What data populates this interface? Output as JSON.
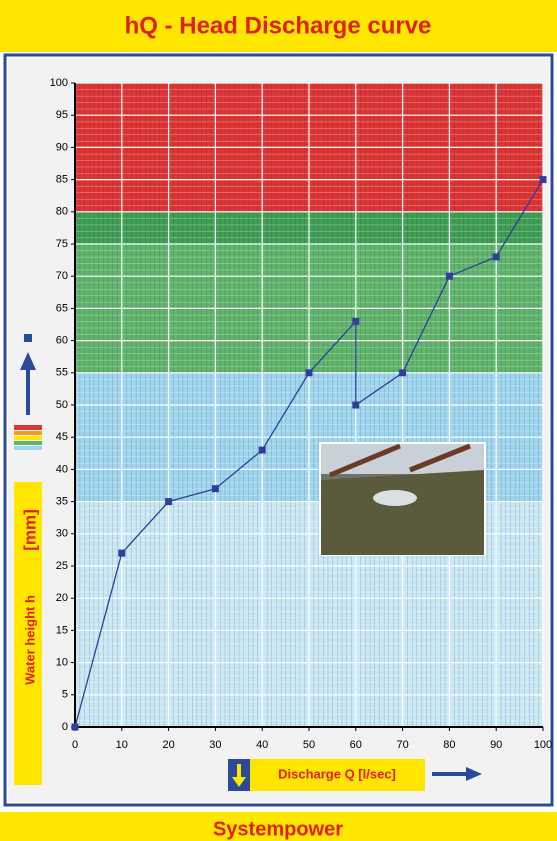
{
  "chart_data": {
    "type": "line",
    "title": "hQ - Head Discharge curve",
    "footer": "Systempower",
    "xlabel": "Discharge Q [l/sec]",
    "ylabel": "Water height h",
    "yunit": "[mm]",
    "x": [
      0,
      10,
      20,
      30,
      40,
      50,
      60,
      60,
      70,
      80,
      90,
      100
    ],
    "series": [
      {
        "color": "#2f3f9a",
        "values": [
          0,
          27,
          35,
          37,
          43,
          55,
          63,
          50,
          55,
          70,
          73,
          85
        ]
      }
    ],
    "zones": [
      {
        "from": 0,
        "to": 35,
        "color": "#c9e8f5"
      },
      {
        "from": 35,
        "to": 55,
        "color": "#9fd6ef"
      },
      {
        "from": 55,
        "to": 75,
        "color": "#5fb56c"
      },
      {
        "from": 75,
        "to": 80,
        "color": "#3f9f55"
      },
      {
        "from": 80,
        "to": 100,
        "color": "#dd3535"
      }
    ],
    "xlim": [
      0,
      100
    ],
    "ylim": [
      0,
      100
    ],
    "xticks": [
      0,
      10,
      20,
      30,
      40,
      50,
      60,
      70,
      80,
      90,
      100
    ],
    "yticks": [
      0,
      5,
      10,
      15,
      20,
      25,
      30,
      35,
      40,
      45,
      50,
      55,
      60,
      65,
      70,
      75,
      80,
      85,
      90,
      95,
      100
    ],
    "grid": true
  }
}
